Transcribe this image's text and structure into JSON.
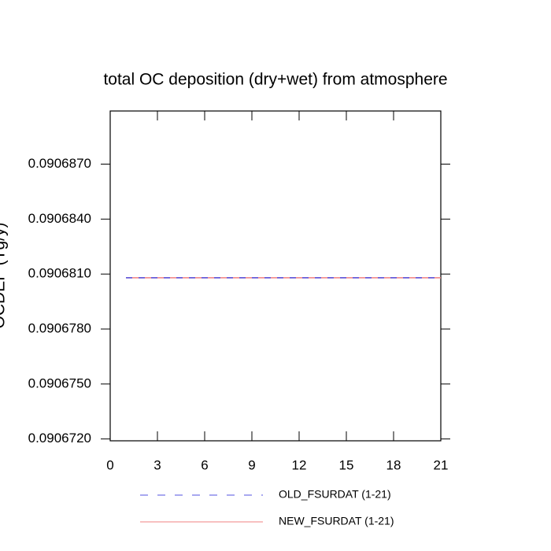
{
  "chart_data": {
    "type": "line",
    "title": "total OC deposition (dry+wet) from atmosphere",
    "ylabel": "OCDEP (Tg/y)",
    "x": [
      1,
      2,
      3,
      4,
      5,
      6,
      7,
      8,
      9,
      10,
      11,
      12,
      13,
      14,
      15,
      16,
      17,
      18,
      19,
      20,
      21
    ],
    "series": [
      {
        "name": "OLD_FSURDAT (1-21)",
        "color": "#5050e0",
        "linestyle": "dashed",
        "values": [
          0.0906808,
          0.0906808,
          0.0906808,
          0.0906808,
          0.0906808,
          0.0906808,
          0.0906808,
          0.0906808,
          0.0906808,
          0.0906808,
          0.0906808,
          0.0906808,
          0.0906808,
          0.0906808,
          0.0906808,
          0.0906808,
          0.0906808,
          0.0906808,
          0.0906808,
          0.0906808,
          0.0906808
        ]
      },
      {
        "name": "NEW_FSURDAT (1-21)",
        "color": "#f08080",
        "linestyle": "solid",
        "values": [
          0.0906808,
          0.0906808,
          0.0906808,
          0.0906808,
          0.0906808,
          0.0906808,
          0.0906808,
          0.0906808,
          0.0906808,
          0.0906808,
          0.0906808,
          0.0906808,
          0.0906808,
          0.0906808,
          0.0906808,
          0.0906808,
          0.0906808,
          0.0906808,
          0.0906808,
          0.0906808,
          0.0906808
        ]
      }
    ],
    "xlim": [
      0,
      21
    ],
    "xticks": [
      0,
      3,
      6,
      9,
      12,
      15,
      18,
      21
    ],
    "ylim": [
      0.0906719,
      0.0906899
    ],
    "yticks": [
      {
        "value": 0.090672,
        "label": "0.0906720"
      },
      {
        "value": 0.090675,
        "label": "0.0906750"
      },
      {
        "value": 0.090678,
        "label": "0.0906780"
      },
      {
        "value": 0.090681,
        "label": "0.0906810"
      },
      {
        "value": 0.090684,
        "label": "0.0906840"
      },
      {
        "value": 0.090687,
        "label": "0.0906870"
      }
    ]
  }
}
